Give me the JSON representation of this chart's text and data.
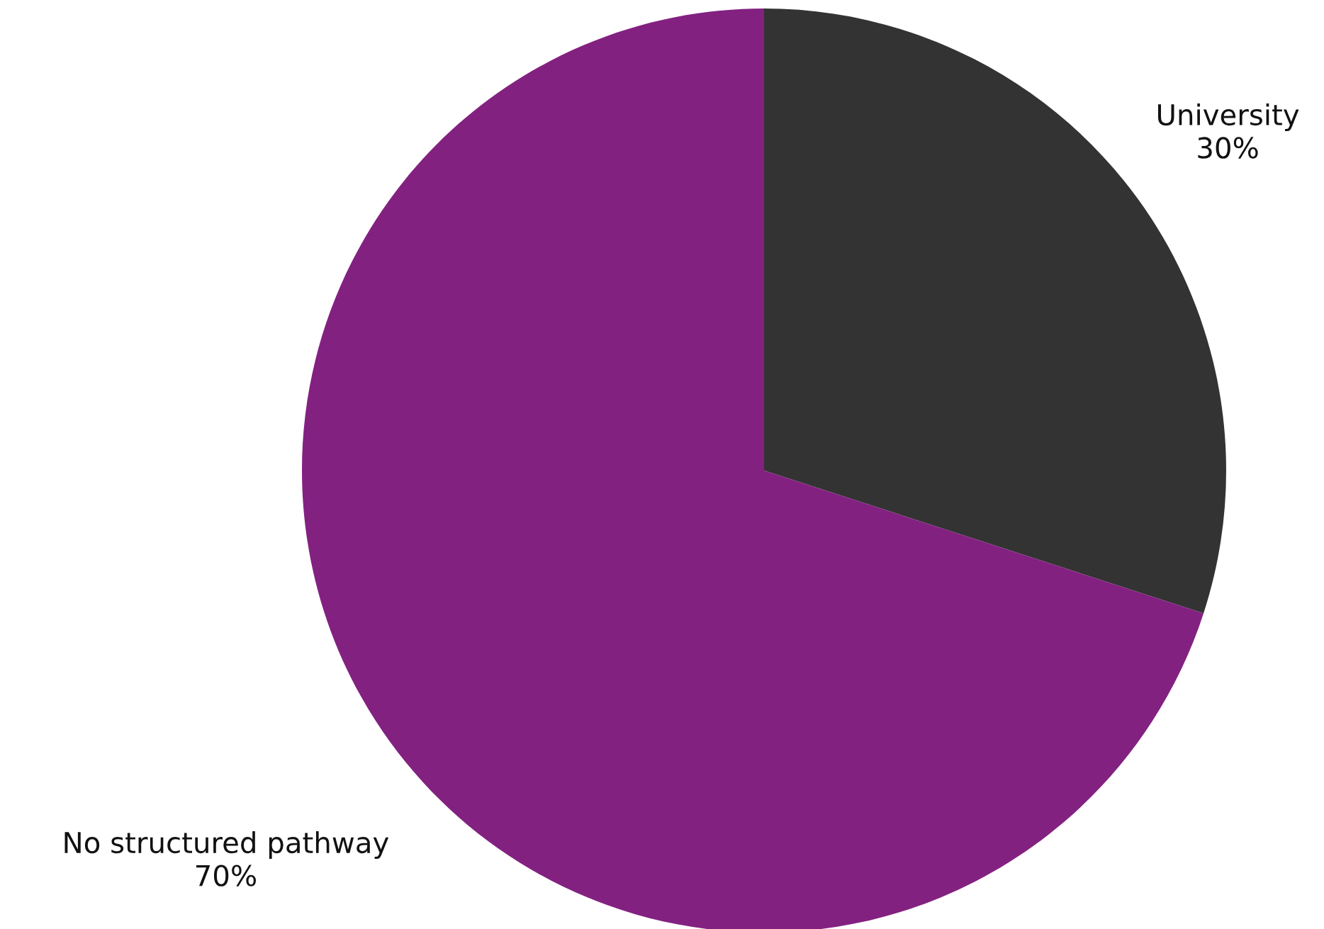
{
  "chart_data": {
    "type": "pie",
    "categories": [
      "University",
      "No structured pathway"
    ],
    "values": [
      30,
      70
    ],
    "colors": [
      "#333333",
      "#832181"
    ],
    "value_labels": [
      "30%",
      "70%"
    ],
    "legend": false
  }
}
